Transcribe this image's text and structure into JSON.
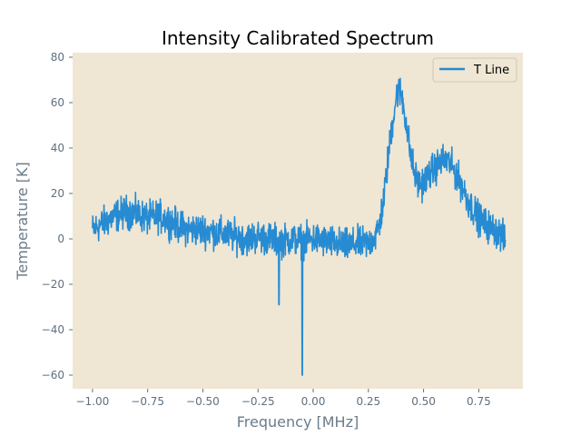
{
  "chart_data": {
    "type": "line",
    "title": "Intensity Calibrated Spectrum",
    "xlabel": "Frequency [MHz]",
    "ylabel": "Temperature [K]",
    "xlim": [
      -1.09,
      0.95
    ],
    "ylim": [
      -66,
      82
    ],
    "xticks": [
      -1.0,
      -0.75,
      -0.5,
      -0.25,
      0.0,
      0.25,
      0.5,
      0.75
    ],
    "xtick_labels": [
      "−1.00",
      "−0.75",
      "−0.50",
      "−0.25",
      "0.00",
      "0.25",
      "0.50",
      "0.75"
    ],
    "yticks": [
      80,
      60,
      40,
      20,
      0,
      -20,
      -40,
      -60
    ],
    "ytick_labels": [
      "80",
      "60",
      "40",
      "20",
      "0",
      "−20",
      "−40",
      "−60"
    ],
    "grid": false,
    "legend_position": "top-right",
    "background_color": "#efe6d4",
    "series": [
      {
        "name": "T Line",
        "color": "#268bd2",
        "noise_amplitude": 3.5,
        "x": [
          -1.0,
          -0.95,
          -0.9,
          -0.85,
          -0.8,
          -0.75,
          -0.7,
          -0.65,
          -0.6,
          -0.55,
          -0.5,
          -0.45,
          -0.4,
          -0.35,
          -0.3,
          -0.25,
          -0.2,
          -0.15,
          -0.1,
          -0.05,
          0.0,
          0.05,
          0.1,
          0.15,
          0.2,
          0.25,
          0.28,
          0.3,
          0.32,
          0.34,
          0.36,
          0.38,
          0.4,
          0.42,
          0.44,
          0.46,
          0.48,
          0.5,
          0.52,
          0.55,
          0.58,
          0.6,
          0.62,
          0.65,
          0.68,
          0.7,
          0.73,
          0.76,
          0.8,
          0.84,
          0.87
        ],
        "y": [
          4,
          7,
          10,
          12,
          11,
          9,
          10,
          8,
          5,
          4,
          4,
          3,
          2,
          1,
          0,
          1,
          0,
          -1,
          0,
          -1,
          0,
          -1,
          -2,
          -3,
          -2,
          -2,
          1,
          6,
          18,
          36,
          52,
          65,
          64,
          52,
          38,
          28,
          24,
          25,
          28,
          31,
          34,
          35,
          33,
          28,
          22,
          17,
          12,
          8,
          5,
          3,
          -1
        ],
        "spikes": [
          {
            "x": -0.155,
            "y": -29
          },
          {
            "x": -0.05,
            "y": -60
          }
        ]
      }
    ]
  }
}
